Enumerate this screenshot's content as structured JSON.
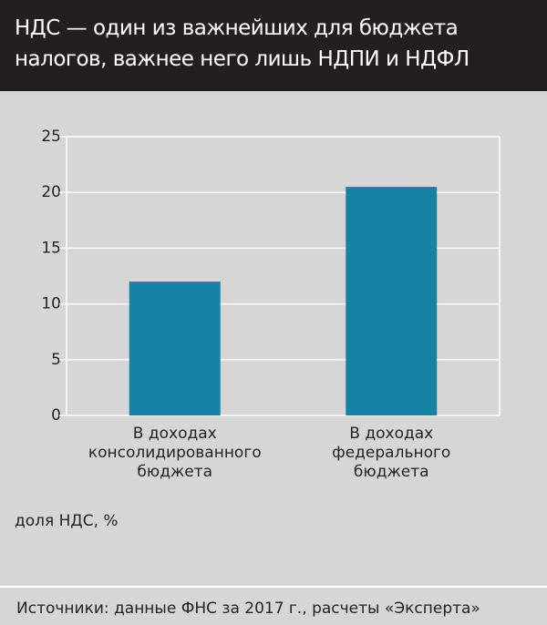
{
  "chart_data": {
    "type": "bar",
    "title": "НДС — один из важнейших для бюджета\nналогов, важнее него лишь НДПИ и НДФЛ",
    "categories": [
      "В доходах\nконсолидированного\nбюджета",
      "В доходах\nфедерального\nбюджета"
    ],
    "values": [
      12,
      20.5
    ],
    "color": "#1683a6",
    "ylim": [
      0,
      25
    ],
    "yticks": [
      0,
      5,
      10,
      15,
      20,
      25
    ],
    "grid": true,
    "axis_label": "доля НДС, %",
    "source": "Источники: данные ФНС за 2017 г., расчеты «Эксперта»"
  }
}
